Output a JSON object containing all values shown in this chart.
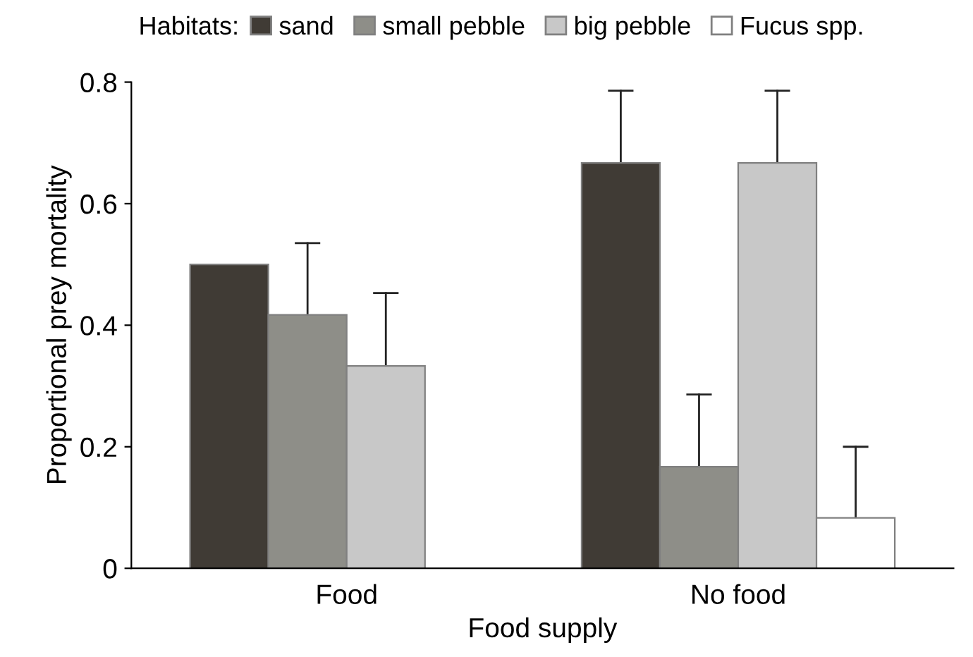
{
  "chart_data": {
    "type": "bar",
    "xlabel": "Food supply",
    "ylabel": "Proportional prey mortality",
    "legend_title": "Habitats:",
    "categories": [
      "Food",
      "No food"
    ],
    "series": [
      {
        "name": "sand",
        "color": "#403b35",
        "values": [
          0.5,
          0.667
        ],
        "errors": [
          null,
          [
            0.667,
            0.786
          ]
        ]
      },
      {
        "name": "small pebble",
        "color": "#8e8e88",
        "values": [
          0.417,
          0.167
        ],
        "errors": [
          [
            0.417,
            0.535
          ],
          [
            0.167,
            0.286
          ]
        ]
      },
      {
        "name": "big pebble",
        "color": "#c8c8c8",
        "values": [
          0.333,
          0.667
        ],
        "errors": [
          [
            0.333,
            0.453
          ],
          [
            0.667,
            0.786
          ]
        ]
      },
      {
        "name": "Fucus spp.",
        "color": "#ffffff",
        "values": [
          null,
          0.083
        ],
        "errors": [
          null,
          [
            0.083,
            0.2
          ]
        ]
      }
    ],
    "ylim": [
      0,
      0.8
    ],
    "yticks": [
      0,
      0.2,
      0.4,
      0.6,
      0.8
    ],
    "grid": false,
    "legend": "top"
  }
}
